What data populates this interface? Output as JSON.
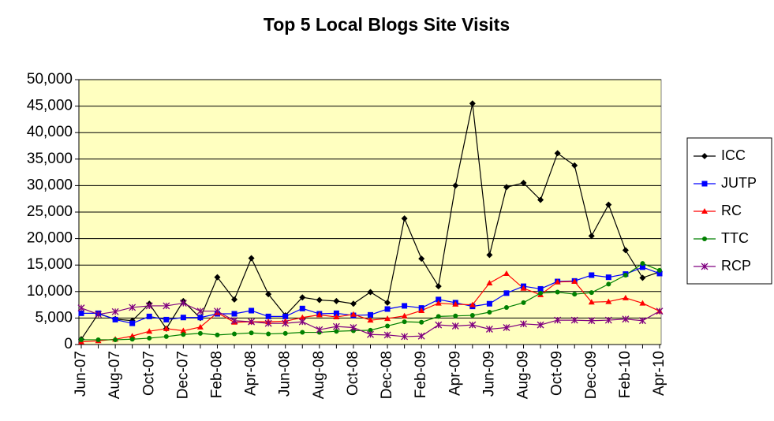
{
  "chart_data": {
    "type": "line",
    "title": "Top 5 Local Blogs Site Visits",
    "categories": [
      "Jun-07",
      null,
      "Aug-07",
      null,
      "Oct-07",
      null,
      "Dec-07",
      null,
      "Feb-08",
      null,
      "Apr-08",
      null,
      "Jun-08",
      null,
      "Aug-08",
      null,
      "Oct-08",
      null,
      "Dec-08",
      null,
      "Feb-09",
      null,
      "Apr-09",
      null,
      "Jun-09",
      null,
      "Aug-09",
      null,
      "Oct-09",
      null,
      "Dec-09",
      null,
      "Feb-10",
      null,
      "Apr-10"
    ],
    "series": [
      {
        "name": "ICC",
        "color": "#000000",
        "marker": "diamond",
        "values": [
          1000,
          5800,
          4800,
          4500,
          7700,
          3000,
          8200,
          5000,
          12700,
          8500,
          16300,
          9500,
          5500,
          8900,
          8400,
          8200,
          7700,
          9900,
          7900,
          23800,
          16200,
          11000,
          30000,
          45500,
          16900,
          29700,
          30500,
          27300,
          36100,
          33800,
          20500,
          26400,
          17800,
          12600,
          13700
        ]
      },
      {
        "name": "JUTP",
        "color": "#0000ff",
        "marker": "square",
        "values": [
          5900,
          5900,
          4700,
          4000,
          5300,
          4700,
          5100,
          5100,
          5800,
          5800,
          6400,
          5300,
          5300,
          6800,
          5800,
          5900,
          5500,
          5600,
          6700,
          7300,
          6900,
          8500,
          7900,
          7200,
          7700,
          9700,
          11000,
          10500,
          11900,
          12000,
          13100,
          12700,
          13300,
          14600,
          13400
        ]
      },
      {
        "name": "RC",
        "color": "#ff0000",
        "marker": "triangle",
        "values": [
          500,
          700,
          1000,
          1600,
          2500,
          3000,
          2600,
          3300,
          6000,
          4200,
          4300,
          4300,
          4400,
          5100,
          5600,
          5200,
          5700,
          4600,
          4900,
          5400,
          6400,
          7800,
          7600,
          7500,
          11600,
          13400,
          10600,
          9400,
          11800,
          11900,
          8000,
          8100,
          8800,
          7800,
          6300
        ]
      },
      {
        "name": "TTC",
        "color": "#008000",
        "marker": "circle",
        "values": [
          900,
          900,
          900,
          1000,
          1200,
          1500,
          1900,
          2100,
          1800,
          2000,
          2200,
          2000,
          2100,
          2300,
          2300,
          2500,
          2600,
          2700,
          3500,
          4300,
          4200,
          5300,
          5400,
          5500,
          6100,
          7000,
          7900,
          9700,
          9900,
          9500,
          9800,
          11400,
          13100,
          15300,
          14000
        ]
      },
      {
        "name": "RCP",
        "color": "#800080",
        "marker": "star",
        "values": [
          6900,
          5700,
          6200,
          7000,
          7300,
          7300,
          7800,
          6300,
          6300,
          4500,
          4300,
          4000,
          4000,
          4300,
          2800,
          3400,
          3200,
          1900,
          1800,
          1500,
          1600,
          3700,
          3500,
          3700,
          2900,
          3200,
          3900,
          3700,
          4600,
          4600,
          4500,
          4600,
          4800,
          4500,
          6300
        ]
      }
    ],
    "ylim": [
      0,
      50000
    ],
    "yticks": [
      0,
      {
        "value": 5000,
        "label": "5,000"
      },
      {
        "value": 10000,
        "label": "10,000"
      },
      {
        "value": 15000,
        "label": "15,000"
      },
      {
        "value": 20000,
        "label": "20,000"
      },
      {
        "value": 25000,
        "label": "25,000"
      },
      {
        "value": 30000,
        "label": "30,000"
      },
      {
        "value": 35000,
        "label": "35,000"
      },
      {
        "value": 40000,
        "label": "40,000"
      },
      {
        "value": 45000,
        "label": "45,000"
      },
      {
        "value": 50000,
        "label": "50,000"
      }
    ],
    "grid": true,
    "legend": "right",
    "plot_background": "#ffffc0"
  }
}
